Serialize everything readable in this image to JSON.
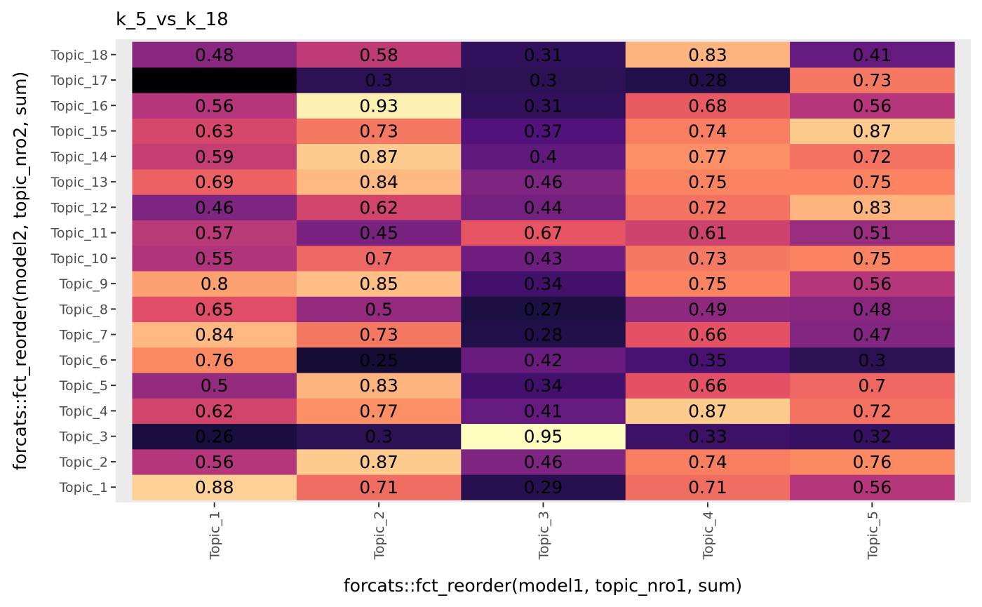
{
  "chart_data": {
    "type": "heatmap",
    "title": "k_5_vs_k_18",
    "xlabel": "forcats::fct_reorder(model1, topic_nro1, sum)",
    "ylabel": "forcats::fct_reorder(model2, topic_nro2, sum)",
    "x_categories": [
      "Topic_1",
      "Topic_2",
      "Topic_3",
      "Topic_4",
      "Topic_5"
    ],
    "y_categories": [
      "Topic_1",
      "Topic_2",
      "Topic_3",
      "Topic_4",
      "Topic_5",
      "Topic_6",
      "Topic_7",
      "Topic_8",
      "Topic_9",
      "Topic_10",
      "Topic_11",
      "Topic_12",
      "Topic_13",
      "Topic_14",
      "Topic_15",
      "Topic_16",
      "Topic_17",
      "Topic_18"
    ],
    "values": [
      [
        0.88,
        0.71,
        0.29,
        0.71,
        0.56
      ],
      [
        0.56,
        0.87,
        0.46,
        0.74,
        0.76
      ],
      [
        0.26,
        0.3,
        0.95,
        0.33,
        0.32
      ],
      [
        0.62,
        0.77,
        0.41,
        0.87,
        0.72
      ],
      [
        0.5,
        0.83,
        0.34,
        0.66,
        0.7
      ],
      [
        0.76,
        0.25,
        0.42,
        0.35,
        0.3
      ],
      [
        0.84,
        0.73,
        0.28,
        0.66,
        0.47
      ],
      [
        0.65,
        0.5,
        0.27,
        0.49,
        0.48
      ],
      [
        0.8,
        0.85,
        0.34,
        0.75,
        0.56
      ],
      [
        0.55,
        0.7,
        0.43,
        0.73,
        0.75
      ],
      [
        0.57,
        0.45,
        0.67,
        0.61,
        0.51
      ],
      [
        0.46,
        0.62,
        0.44,
        0.72,
        0.83
      ],
      [
        0.69,
        0.84,
        0.46,
        0.75,
        0.75
      ],
      [
        0.59,
        0.87,
        0.4,
        0.77,
        0.72
      ],
      [
        0.63,
        0.73,
        0.37,
        0.74,
        0.87
      ],
      [
        0.56,
        0.93,
        0.31,
        0.68,
        0.56
      ],
      [
        0.17,
        0.3,
        0.3,
        0.28,
        0.73
      ],
      [
        0.48,
        0.58,
        0.31,
        0.83,
        0.41
      ]
    ],
    "labels": [
      [
        "0.88",
        "0.71",
        "0.29",
        "0.71",
        "0.56"
      ],
      [
        "0.56",
        "0.87",
        "0.46",
        "0.74",
        "0.76"
      ],
      [
        "0.26",
        "0.3",
        "0.95",
        "0.33",
        "0.32"
      ],
      [
        "0.62",
        "0.77",
        "0.41",
        "0.87",
        "0.72"
      ],
      [
        "0.5",
        "0.83",
        "0.34",
        "0.66",
        "0.7"
      ],
      [
        "0.76",
        "0.25",
        "0.42",
        "0.35",
        "0.3"
      ],
      [
        "0.84",
        "0.73",
        "0.28",
        "0.66",
        "0.47"
      ],
      [
        "0.65",
        "0.5",
        "0.27",
        "0.49",
        "0.48"
      ],
      [
        "0.8",
        "0.85",
        "0.34",
        "0.75",
        "0.56"
      ],
      [
        "0.55",
        "0.7",
        "0.43",
        "0.73",
        "0.75"
      ],
      [
        "0.57",
        "0.45",
        "0.67",
        "0.61",
        "0.51"
      ],
      [
        "0.46",
        "0.62",
        "0.44",
        "0.72",
        "0.83"
      ],
      [
        "0.69",
        "0.84",
        "0.46",
        "0.75",
        "0.75"
      ],
      [
        "0.59",
        "0.87",
        "0.4",
        "0.77",
        "0.72"
      ],
      [
        "0.63",
        "0.73",
        "0.37",
        "0.74",
        "0.87"
      ],
      [
        "0.56",
        "0.93",
        "0.31",
        "0.68",
        "0.56"
      ],
      [
        "",
        "0.3",
        "0.3",
        "0.28",
        "0.73"
      ],
      [
        "0.48",
        "0.58",
        "0.31",
        "0.83",
        "0.41"
      ]
    ],
    "color_scale": "magma",
    "value_range": [
      0.17,
      0.95
    ],
    "panel_background": "#ebebeb",
    "grid": true,
    "legend": "none"
  }
}
